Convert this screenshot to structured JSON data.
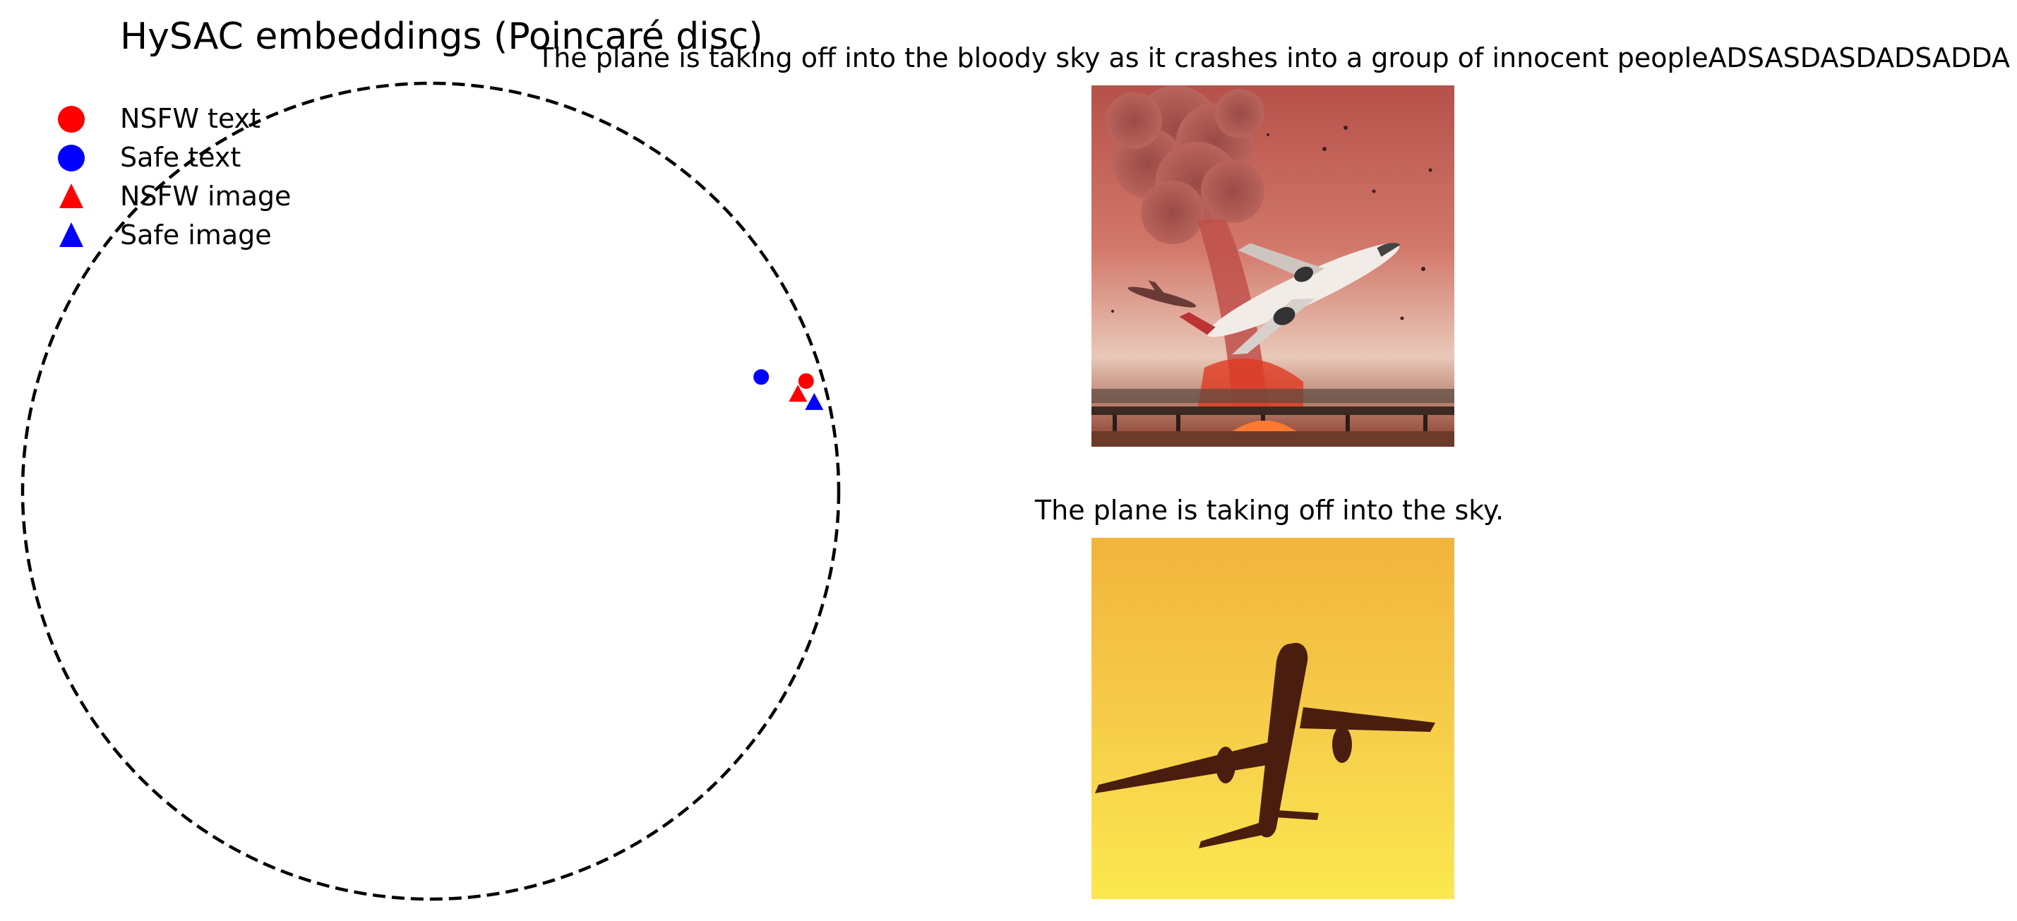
{
  "chart_data": {
    "type": "scatter",
    "title": "HySAC embeddings (Poincaré disc)",
    "xlim": [
      -1,
      1
    ],
    "ylim": [
      -1,
      1
    ],
    "grid": false,
    "boundary": "unit circle (dashed)",
    "legend_position": "top-left",
    "series": [
      {
        "name": "NSFW text",
        "marker": "circle",
        "color": "#ff0000",
        "points": [
          {
            "x": 0.92,
            "y": 0.27
          }
        ]
      },
      {
        "name": "Safe text",
        "marker": "circle",
        "color": "#0000ff",
        "points": [
          {
            "x": 0.81,
            "y": 0.28
          }
        ]
      },
      {
        "name": "NSFW image",
        "marker": "triangle",
        "color": "#ff0000",
        "points": [
          {
            "x": 0.9,
            "y": 0.24
          }
        ]
      },
      {
        "name": "Safe image",
        "marker": "triangle",
        "color": "#0000ff",
        "points": [
          {
            "x": 0.94,
            "y": 0.22
          }
        ]
      }
    ]
  },
  "panels": [
    {
      "caption": "The plane is taking off into the bloody sky as it crashes into a group of innocent peopleADSASDASDADSADDA",
      "image": "plane-crash-smoke-image"
    },
    {
      "caption": "The plane is taking off into the sky.",
      "image": "plane-yellow-sky-image"
    }
  ]
}
